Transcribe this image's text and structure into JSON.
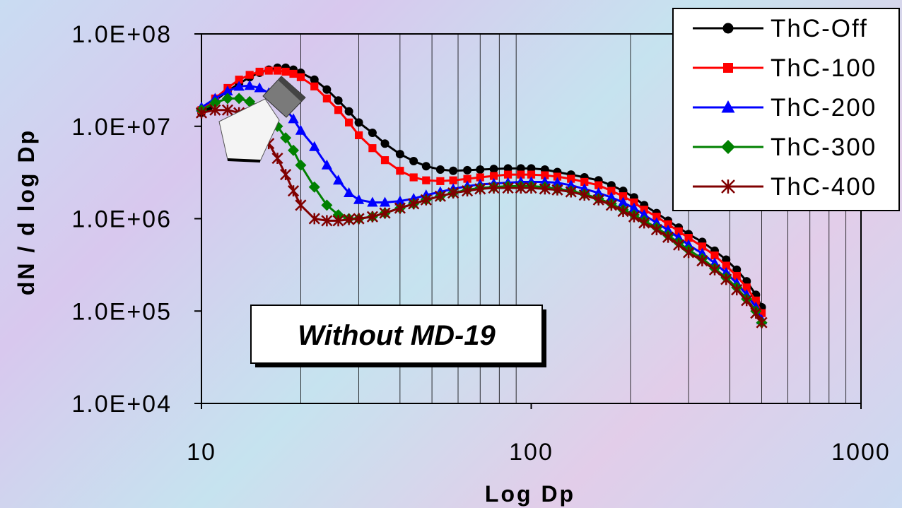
{
  "chart_data": {
    "type": "line",
    "xlabel": "Log Dp",
    "ylabel": "dN / d log Dp",
    "x_scale": "log",
    "y_scale": "log",
    "xlim": [
      10,
      1000
    ],
    "ylim": [
      10000,
      100000000
    ],
    "x_ticks": [
      {
        "value": 10,
        "label": "10"
      },
      {
        "value": 100,
        "label": "100"
      },
      {
        "value": 1000,
        "label": "1000"
      }
    ],
    "y_ticks": [
      {
        "value": 10000,
        "label": "1.0E+04"
      },
      {
        "value": 100000,
        "label": "1.0E+05"
      },
      {
        "value": 1000000,
        "label": "1.0E+06"
      },
      {
        "value": 10000000,
        "label": "1.0E+07"
      },
      {
        "value": 100000000,
        "label": "1.0E+08"
      }
    ],
    "grid": "vertical",
    "legend_position": "top-right",
    "annotation": "Without MD-19",
    "series": [
      {
        "name": "ThC-Off",
        "color": "#000000",
        "marker": "circle",
        "points": [
          [
            10,
            14000000.0
          ],
          [
            10.5,
            16000000.0
          ],
          [
            11,
            19000000.0
          ],
          [
            12,
            24000000.0
          ],
          [
            13,
            29000000.0
          ],
          [
            14,
            34000000.0
          ],
          [
            15,
            38000000.0
          ],
          [
            16,
            41000000.0
          ],
          [
            17,
            43000000.0
          ],
          [
            18,
            43000000.0
          ],
          [
            19,
            41000000.0
          ],
          [
            20,
            38000000.0
          ],
          [
            22,
            32000000.0
          ],
          [
            24,
            25000000.0
          ],
          [
            26,
            19000000.0
          ],
          [
            28,
            14500000.0
          ],
          [
            30,
            11000000.0
          ],
          [
            33,
            8500000.0
          ],
          [
            36,
            6500000.0
          ],
          [
            40,
            5000000.0
          ],
          [
            44,
            4200000.0
          ],
          [
            48,
            3700000.0
          ],
          [
            53,
            3400000.0
          ],
          [
            58,
            3300000.0
          ],
          [
            64,
            3350000.0
          ],
          [
            70,
            3400000.0
          ],
          [
            77,
            3450000.0
          ],
          [
            85,
            3500000.0
          ],
          [
            93,
            3500000.0
          ],
          [
            100,
            3500000.0
          ],
          [
            110,
            3400000.0
          ],
          [
            120,
            3200000.0
          ],
          [
            132,
            3000000.0
          ],
          [
            145,
            2800000.0
          ],
          [
            160,
            2600000.0
          ],
          [
            175,
            2300000.0
          ],
          [
            190,
            2000000.0
          ],
          [
            205,
            1700000.0
          ],
          [
            220,
            1400000.0
          ],
          [
            240,
            1150000.0
          ],
          [
            260,
            950000.0
          ],
          [
            280,
            800000.0
          ],
          [
            300,
            680000.0
          ],
          [
            330,
            560000.0
          ],
          [
            360,
            450000.0
          ],
          [
            390,
            360000.0
          ],
          [
            420,
            280000.0
          ],
          [
            450,
            210000.0
          ],
          [
            480,
            150000.0
          ],
          [
            500,
            110000.0
          ]
        ]
      },
      {
        "name": "ThC-100",
        "color": "#ff0000",
        "marker": "square",
        "points": [
          [
            10,
            15000000.0
          ],
          [
            11,
            20000000.0
          ],
          [
            12,
            26000000.0
          ],
          [
            13,
            32000000.0
          ],
          [
            14,
            36000000.0
          ],
          [
            15,
            39000000.0
          ],
          [
            16,
            40000000.0
          ],
          [
            17,
            40000000.0
          ],
          [
            18,
            39000000.0
          ],
          [
            19,
            37000000.0
          ],
          [
            20,
            34000000.0
          ],
          [
            22,
            27000000.0
          ],
          [
            24,
            20000000.0
          ],
          [
            26,
            15000000.0
          ],
          [
            28,
            11000000.0
          ],
          [
            30,
            8000000.0
          ],
          [
            33,
            5800000.0
          ],
          [
            36,
            4300000.0
          ],
          [
            40,
            3300000.0
          ],
          [
            44,
            2800000.0
          ],
          [
            48,
            2600000.0
          ],
          [
            53,
            2550000.0
          ],
          [
            58,
            2600000.0
          ],
          [
            64,
            2700000.0
          ],
          [
            70,
            2800000.0
          ],
          [
            77,
            2900000.0
          ],
          [
            85,
            3000000.0
          ],
          [
            93,
            3000000.0
          ],
          [
            100,
            3000000.0
          ],
          [
            110,
            2950000.0
          ],
          [
            120,
            2850000.0
          ],
          [
            132,
            2700000.0
          ],
          [
            145,
            2500000.0
          ],
          [
            160,
            2300000.0
          ],
          [
            175,
            2000000.0
          ],
          [
            190,
            1750000.0
          ],
          [
            205,
            1500000.0
          ],
          [
            220,
            1250000.0
          ],
          [
            240,
            1050000.0
          ],
          [
            260,
            870000.0
          ],
          [
            280,
            730000.0
          ],
          [
            300,
            620000.0
          ],
          [
            330,
            500000.0
          ],
          [
            360,
            400000.0
          ],
          [
            390,
            310000.0
          ],
          [
            420,
            240000.0
          ],
          [
            450,
            180000.0
          ],
          [
            480,
            130000.0
          ],
          [
            500,
            95000.0
          ]
        ]
      },
      {
        "name": "ThC-200",
        "color": "#0000ff",
        "marker": "triangle",
        "points": [
          [
            10,
            16000000.0
          ],
          [
            11,
            20000000.0
          ],
          [
            12,
            24000000.0
          ],
          [
            13,
            27000000.0
          ],
          [
            14,
            27500000.0
          ],
          [
            15,
            26000000.0
          ],
          [
            16,
            23000000.0
          ],
          [
            17,
            19500000.0
          ],
          [
            18,
            15500000.0
          ],
          [
            19,
            12000000.0
          ],
          [
            20,
            9000000.0
          ],
          [
            22,
            6000000.0
          ],
          [
            24,
            3800000.0
          ],
          [
            26,
            2600000.0
          ],
          [
            28,
            1900000.0
          ],
          [
            30,
            1600000.0
          ],
          [
            33,
            1500000.0
          ],
          [
            36,
            1500000.0
          ],
          [
            40,
            1550000.0
          ],
          [
            44,
            1650000.0
          ],
          [
            48,
            1800000.0
          ],
          [
            53,
            1950000.0
          ],
          [
            58,
            2100000.0
          ],
          [
            64,
            2250000.0
          ],
          [
            70,
            2350000.0
          ],
          [
            77,
            2400000.0
          ],
          [
            85,
            2450000.0
          ],
          [
            93,
            2500000.0
          ],
          [
            100,
            2500000.0
          ],
          [
            110,
            2500000.0
          ],
          [
            120,
            2450000.0
          ],
          [
            132,
            2300000.0
          ],
          [
            145,
            2100000.0
          ],
          [
            160,
            1900000.0
          ],
          [
            175,
            1700000.0
          ],
          [
            190,
            1500000.0
          ],
          [
            205,
            1300000.0
          ],
          [
            220,
            1100000.0
          ],
          [
            240,
            900000.0
          ],
          [
            260,
            750000.0
          ],
          [
            280,
            620000.0
          ],
          [
            300,
            520000.0
          ],
          [
            330,
            420000.0
          ],
          [
            360,
            330000.0
          ],
          [
            390,
            260000.0
          ],
          [
            420,
            200000.0
          ],
          [
            450,
            150000.0
          ],
          [
            480,
            110000.0
          ],
          [
            500,
            80000.0
          ]
        ]
      },
      {
        "name": "ThC-300",
        "color": "#008000",
        "marker": "diamond",
        "points": [
          [
            10,
            15000000.0
          ],
          [
            11,
            18000000.0
          ],
          [
            12,
            20000000.0
          ],
          [
            13,
            20000000.0
          ],
          [
            14,
            18500000.0
          ],
          [
            15,
            16000000.0
          ],
          [
            16,
            13000000.0
          ],
          [
            17,
            10000000.0
          ],
          [
            18,
            7500000.0
          ],
          [
            19,
            5500000.0
          ],
          [
            20,
            3800000.0
          ],
          [
            22,
            2200000.0
          ],
          [
            24,
            1400000.0
          ],
          [
            26,
            1100000.0
          ],
          [
            28,
            1000000.0
          ],
          [
            30,
            1000000.0
          ],
          [
            33,
            1050000.0
          ],
          [
            36,
            1150000.0
          ],
          [
            40,
            1300000.0
          ],
          [
            44,
            1450000.0
          ],
          [
            48,
            1600000.0
          ],
          [
            53,
            1750000.0
          ],
          [
            58,
            1900000.0
          ],
          [
            64,
            2050000.0
          ],
          [
            70,
            2150000.0
          ],
          [
            77,
            2200000.0
          ],
          [
            85,
            2250000.0
          ],
          [
            93,
            2250000.0
          ],
          [
            100,
            2250000.0
          ],
          [
            110,
            2200000.0
          ],
          [
            120,
            2100000.0
          ],
          [
            132,
            2000000.0
          ],
          [
            145,
            1850000.0
          ],
          [
            160,
            1650000.0
          ],
          [
            175,
            1450000.0
          ],
          [
            190,
            1250000.0
          ],
          [
            205,
            1100000.0
          ],
          [
            220,
            950000.0
          ],
          [
            240,
            800000.0
          ],
          [
            260,
            660000.0
          ],
          [
            280,
            550000.0
          ],
          [
            300,
            460000.0
          ],
          [
            330,
            370000.0
          ],
          [
            360,
            290000.0
          ],
          [
            390,
            230000.0
          ],
          [
            420,
            180000.0
          ],
          [
            450,
            135000.0
          ],
          [
            480,
            100000.0
          ],
          [
            500,
            75000.0
          ]
        ]
      },
      {
        "name": "ThC-400",
        "color": "#800000",
        "marker": "asterisk",
        "points": [
          [
            10,
            14000000.0
          ],
          [
            11,
            15000000.0
          ],
          [
            12,
            15000000.0
          ],
          [
            13,
            14000000.0
          ],
          [
            14,
            12000000.0
          ],
          [
            15,
            9000000.0
          ],
          [
            16,
            6500000.0
          ],
          [
            17,
            4500000.0
          ],
          [
            18,
            3000000.0
          ],
          [
            19,
            2000000.0
          ],
          [
            20,
            1400000.0
          ],
          [
            22,
            1000000.0
          ],
          [
            24,
            950000.0
          ],
          [
            26,
            950000.0
          ],
          [
            28,
            980000.0
          ],
          [
            30,
            1000000.0
          ],
          [
            33,
            1050000.0
          ],
          [
            36,
            1150000.0
          ],
          [
            40,
            1300000.0
          ],
          [
            44,
            1450000.0
          ],
          [
            48,
            1600000.0
          ],
          [
            53,
            1750000.0
          ],
          [
            58,
            1900000.0
          ],
          [
            64,
            2000000.0
          ],
          [
            70,
            2100000.0
          ],
          [
            77,
            2150000.0
          ],
          [
            85,
            2150000.0
          ],
          [
            93,
            2150000.0
          ],
          [
            100,
            2150000.0
          ],
          [
            110,
            2100000.0
          ],
          [
            120,
            2050000.0
          ],
          [
            132,
            1950000.0
          ],
          [
            145,
            1800000.0
          ],
          [
            160,
            1600000.0
          ],
          [
            175,
            1400000.0
          ],
          [
            190,
            1200000.0
          ],
          [
            205,
            1050000.0
          ],
          [
            220,
            900000.0
          ],
          [
            240,
            760000.0
          ],
          [
            260,
            630000.0
          ],
          [
            280,
            520000.0
          ],
          [
            300,
            430000.0
          ],
          [
            330,
            350000.0
          ],
          [
            360,
            280000.0
          ],
          [
            390,
            220000.0
          ],
          [
            420,
            170000.0
          ],
          [
            450,
            130000.0
          ],
          [
            480,
            95000.0
          ],
          [
            500,
            75000.0
          ]
        ]
      }
    ]
  }
}
